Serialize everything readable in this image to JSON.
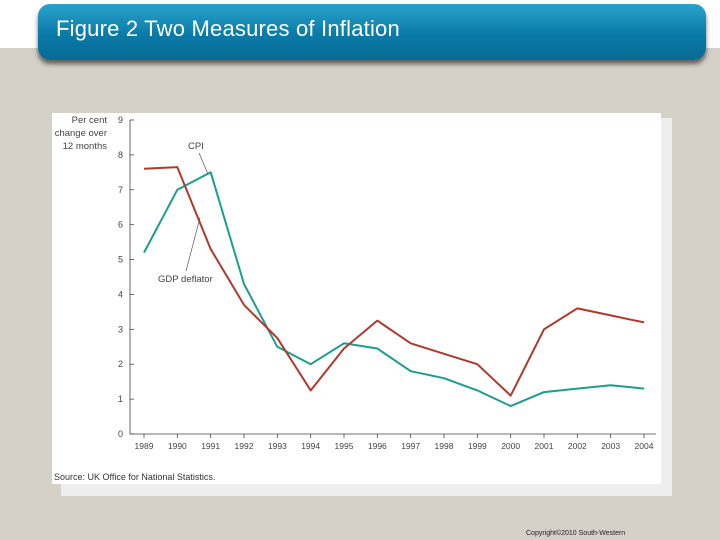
{
  "slide": {
    "title": "Figure 2 Two Measures of Inflation",
    "copyright": "Copyright©2010  South-Western"
  },
  "chart_data": {
    "type": "line",
    "ylabel": [
      "Per cent",
      "change over",
      "12 months"
    ],
    "source": "Source: UK Office for National Statistics.",
    "x": [
      "1989",
      "1990",
      "1991",
      "1992",
      "1993",
      "1994",
      "1995",
      "1996",
      "1997",
      "1998",
      "1999",
      "2000",
      "2001",
      "2002",
      "2003",
      "2004"
    ],
    "y_ticks": [
      "0",
      "1",
      "2",
      "3",
      "4",
      "5",
      "6",
      "7",
      "8",
      "9"
    ],
    "ylim": [
      0,
      9
    ],
    "grid": false,
    "series": [
      {
        "name": "CPI",
        "color": "#1a9e8f",
        "values": [
          5.2,
          7.0,
          7.5,
          4.3,
          2.5,
          2.0,
          2.6,
          2.45,
          1.8,
          1.6,
          1.25,
          0.8,
          1.2,
          1.3,
          1.4,
          1.3
        ]
      },
      {
        "name": "GDP deflator",
        "color": "#b0392c",
        "values": [
          7.6,
          7.65,
          5.3,
          3.7,
          2.75,
          1.25,
          2.45,
          3.25,
          2.6,
          2.3,
          2.0,
          1.1,
          3.0,
          3.6,
          3.4,
          3.2
        ]
      }
    ]
  }
}
